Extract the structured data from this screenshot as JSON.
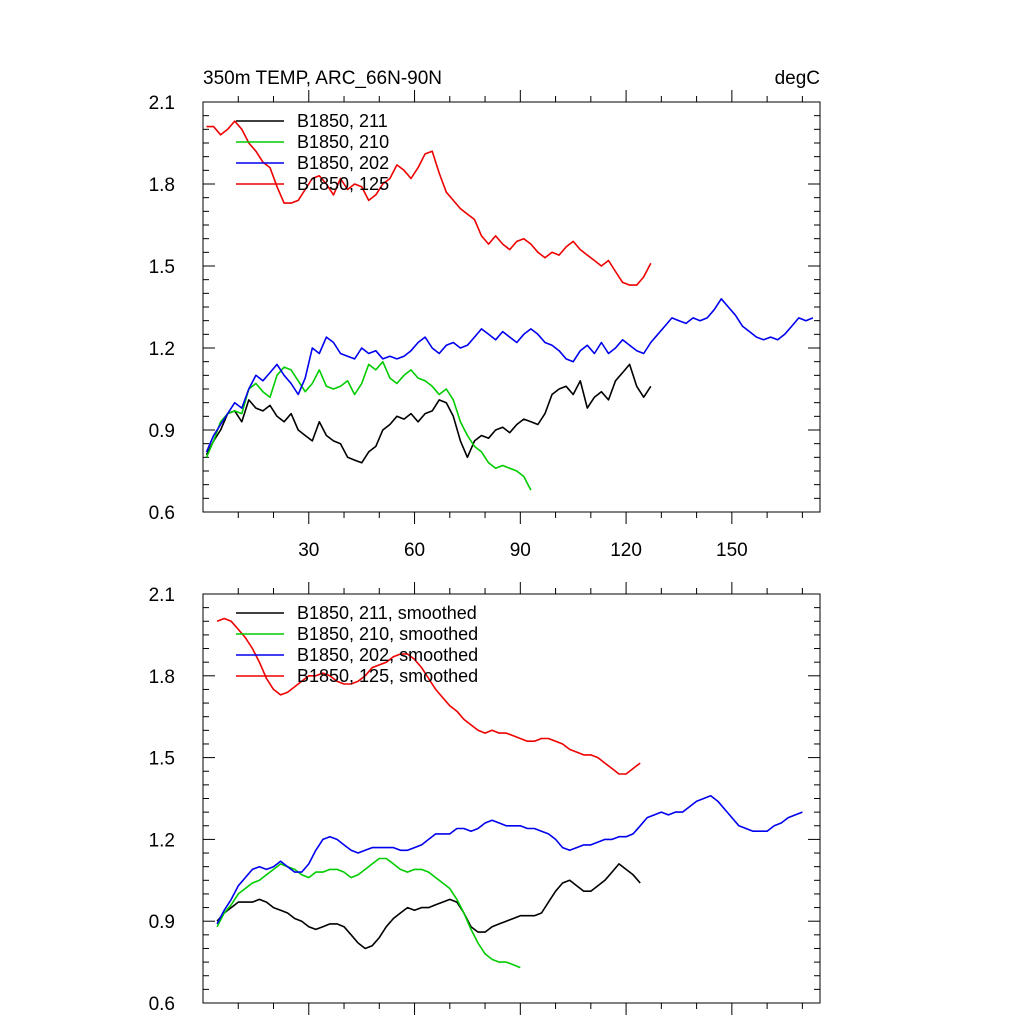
{
  "chart_data": [
    {
      "type": "line",
      "title": "350m TEMP, ARC_66N-90N",
      "units": "degC",
      "xlabel": "",
      "ylabel": "",
      "xlim": [
        0,
        175
      ],
      "ylim": [
        0.6,
        2.1
      ],
      "xticks": [
        30,
        60,
        90,
        120,
        150
      ],
      "xtick_labels": [
        "30",
        "60",
        "90",
        "120",
        "150"
      ],
      "yticks": [
        0.6,
        0.9,
        1.2,
        1.5,
        1.8,
        2.1
      ],
      "ytick_labels": [
        "0.6",
        "0.9",
        "1.2",
        "1.5",
        "1.8",
        "2.1"
      ],
      "grid": false,
      "legend_position": "top-left",
      "series": [
        {
          "name": "B1850, 211",
          "color": "#000000",
          "x": [
            1,
            3,
            5,
            7,
            9,
            11,
            13,
            15,
            17,
            19,
            21,
            23,
            25,
            27,
            29,
            31,
            33,
            35,
            37,
            39,
            41,
            43,
            45,
            47,
            49,
            51,
            53,
            55,
            57,
            59,
            61,
            63,
            65,
            67,
            69,
            71,
            73,
            75,
            77,
            79,
            81,
            83,
            85,
            87,
            89,
            91,
            93,
            95,
            97,
            99,
            101,
            103,
            105,
            107,
            109,
            111,
            113,
            115,
            117,
            119,
            121,
            123,
            125,
            127
          ],
          "y": [
            0.81,
            0.86,
            0.9,
            0.96,
            0.97,
            0.93,
            1.01,
            0.98,
            0.97,
            0.99,
            0.95,
            0.93,
            0.96,
            0.9,
            0.88,
            0.86,
            0.93,
            0.88,
            0.86,
            0.85,
            0.8,
            0.79,
            0.78,
            0.82,
            0.84,
            0.9,
            0.92,
            0.95,
            0.94,
            0.96,
            0.93,
            0.96,
            0.97,
            1.01,
            1.0,
            0.95,
            0.86,
            0.8,
            0.86,
            0.88,
            0.87,
            0.9,
            0.91,
            0.89,
            0.92,
            0.94,
            0.93,
            0.92,
            0.96,
            1.03,
            1.05,
            1.06,
            1.03,
            1.08,
            0.98,
            1.02,
            1.04,
            1.01,
            1.08,
            1.11,
            1.14,
            1.06,
            1.02,
            1.06
          ]
        },
        {
          "name": "B1850, 210",
          "color": "#00cc00",
          "x": [
            1,
            3,
            5,
            7,
            9,
            11,
            13,
            15,
            17,
            19,
            21,
            23,
            25,
            27,
            29,
            31,
            33,
            35,
            37,
            39,
            41,
            43,
            45,
            47,
            49,
            51,
            53,
            55,
            57,
            59,
            61,
            63,
            65,
            67,
            69,
            71,
            73,
            75,
            77,
            79,
            81,
            83,
            85,
            87,
            89,
            91,
            93
          ],
          "y": [
            0.8,
            0.86,
            0.93,
            0.96,
            0.97,
            0.96,
            1.05,
            1.07,
            1.04,
            1.02,
            1.1,
            1.13,
            1.12,
            1.08,
            1.04,
            1.07,
            1.12,
            1.06,
            1.05,
            1.06,
            1.08,
            1.03,
            1.07,
            1.14,
            1.12,
            1.15,
            1.09,
            1.07,
            1.1,
            1.12,
            1.09,
            1.08,
            1.06,
            1.03,
            1.05,
            1.01,
            0.93,
            0.88,
            0.84,
            0.82,
            0.78,
            0.76,
            0.77,
            0.76,
            0.75,
            0.73,
            0.68
          ]
        },
        {
          "name": "B1850, 202",
          "color": "#0000ee",
          "x": [
            1,
            3,
            5,
            7,
            9,
            11,
            13,
            15,
            17,
            19,
            21,
            23,
            25,
            27,
            29,
            31,
            33,
            35,
            37,
            39,
            41,
            43,
            45,
            47,
            49,
            51,
            53,
            55,
            57,
            59,
            61,
            63,
            65,
            67,
            69,
            71,
            73,
            75,
            77,
            79,
            81,
            83,
            85,
            87,
            89,
            91,
            93,
            95,
            97,
            99,
            101,
            103,
            105,
            107,
            109,
            111,
            113,
            115,
            117,
            119,
            121,
            123,
            125,
            127,
            129,
            131,
            133,
            135,
            137,
            139,
            141,
            143,
            145,
            147,
            149,
            151,
            153,
            155,
            157,
            159,
            161,
            163,
            165,
            167,
            169,
            171,
            173
          ],
          "y": [
            0.82,
            0.88,
            0.92,
            0.96,
            1.0,
            0.98,
            1.05,
            1.1,
            1.08,
            1.11,
            1.14,
            1.1,
            1.07,
            1.03,
            1.09,
            1.2,
            1.18,
            1.24,
            1.22,
            1.18,
            1.17,
            1.16,
            1.2,
            1.18,
            1.19,
            1.16,
            1.17,
            1.16,
            1.17,
            1.19,
            1.22,
            1.24,
            1.2,
            1.18,
            1.21,
            1.22,
            1.2,
            1.21,
            1.24,
            1.27,
            1.25,
            1.23,
            1.26,
            1.24,
            1.22,
            1.25,
            1.27,
            1.25,
            1.22,
            1.21,
            1.19,
            1.16,
            1.15,
            1.19,
            1.21,
            1.18,
            1.22,
            1.18,
            1.2,
            1.23,
            1.21,
            1.19,
            1.18,
            1.22,
            1.25,
            1.28,
            1.31,
            1.3,
            1.29,
            1.31,
            1.3,
            1.31,
            1.34,
            1.38,
            1.35,
            1.32,
            1.28,
            1.26,
            1.24,
            1.23,
            1.24,
            1.23,
            1.25,
            1.28,
            1.31,
            1.3,
            1.31
          ]
        },
        {
          "name": "B1850, 125",
          "color": "#ee0000",
          "x": [
            1,
            3,
            5,
            7,
            9,
            11,
            13,
            15,
            17,
            19,
            21,
            23,
            25,
            27,
            29,
            31,
            33,
            35,
            37,
            39,
            41,
            43,
            45,
            47,
            49,
            51,
            53,
            55,
            57,
            59,
            61,
            63,
            65,
            67,
            69,
            71,
            73,
            75,
            77,
            79,
            81,
            83,
            85,
            87,
            89,
            91,
            93,
            95,
            97,
            99,
            101,
            103,
            105,
            107,
            109,
            111,
            113,
            115,
            117,
            119,
            121,
            123,
            125,
            127
          ],
          "y": [
            2.01,
            2.01,
            1.98,
            2.0,
            2.03,
            2.0,
            1.95,
            1.92,
            1.88,
            1.86,
            1.79,
            1.73,
            1.73,
            1.74,
            1.78,
            1.82,
            1.83,
            1.8,
            1.76,
            1.82,
            1.78,
            1.8,
            1.79,
            1.74,
            1.76,
            1.8,
            1.82,
            1.87,
            1.85,
            1.82,
            1.86,
            1.91,
            1.92,
            1.84,
            1.77,
            1.74,
            1.71,
            1.69,
            1.67,
            1.61,
            1.58,
            1.61,
            1.58,
            1.56,
            1.59,
            1.6,
            1.58,
            1.55,
            1.53,
            1.55,
            1.54,
            1.57,
            1.59,
            1.56,
            1.54,
            1.52,
            1.5,
            1.52,
            1.48,
            1.44,
            1.43,
            1.43,
            1.46,
            1.51
          ]
        }
      ]
    },
    {
      "type": "line",
      "title": "",
      "xlabel": "",
      "ylabel": "",
      "xlim": [
        0,
        175
      ],
      "ylim": [
        0.6,
        2.1
      ],
      "xticks": [
        30,
        60,
        90,
        120,
        150
      ],
      "xtick_labels": [],
      "yticks": [
        0.6,
        0.9,
        1.2,
        1.5,
        1.8,
        2.1
      ],
      "ytick_labels": [
        "0.6",
        "0.9",
        "1.2",
        "1.5",
        "1.8",
        "2.1"
      ],
      "grid": false,
      "legend_position": "top-left",
      "series": [
        {
          "name": "B1850, 211, smoothed",
          "color": "#000000",
          "x": [
            4,
            6,
            8,
            10,
            12,
            14,
            16,
            18,
            20,
            22,
            24,
            26,
            28,
            30,
            32,
            34,
            36,
            38,
            40,
            42,
            44,
            46,
            48,
            50,
            52,
            54,
            56,
            58,
            60,
            62,
            64,
            66,
            68,
            70,
            72,
            74,
            76,
            78,
            80,
            82,
            84,
            86,
            88,
            90,
            92,
            94,
            96,
            98,
            100,
            102,
            104,
            106,
            108,
            110,
            112,
            114,
            116,
            118,
            120,
            122,
            124
          ],
          "y": [
            0.9,
            0.93,
            0.95,
            0.97,
            0.97,
            0.97,
            0.98,
            0.97,
            0.95,
            0.94,
            0.93,
            0.91,
            0.9,
            0.88,
            0.87,
            0.88,
            0.89,
            0.89,
            0.88,
            0.85,
            0.82,
            0.8,
            0.81,
            0.84,
            0.88,
            0.91,
            0.93,
            0.95,
            0.94,
            0.95,
            0.95,
            0.96,
            0.97,
            0.98,
            0.97,
            0.93,
            0.88,
            0.86,
            0.86,
            0.88,
            0.89,
            0.9,
            0.91,
            0.92,
            0.92,
            0.92,
            0.93,
            0.97,
            1.01,
            1.04,
            1.05,
            1.03,
            1.01,
            1.01,
            1.03,
            1.05,
            1.08,
            1.11,
            1.09,
            1.07,
            1.04
          ]
        },
        {
          "name": "B1850, 210, smoothed",
          "color": "#00cc00",
          "x": [
            4,
            6,
            8,
            10,
            12,
            14,
            16,
            18,
            20,
            22,
            24,
            26,
            28,
            30,
            32,
            34,
            36,
            38,
            40,
            42,
            44,
            46,
            48,
            50,
            52,
            54,
            56,
            58,
            60,
            62,
            64,
            66,
            68,
            70,
            72,
            74,
            76,
            78,
            80,
            82,
            84,
            86,
            88,
            90
          ],
          "y": [
            0.88,
            0.93,
            0.96,
            1.0,
            1.02,
            1.04,
            1.05,
            1.07,
            1.09,
            1.11,
            1.1,
            1.09,
            1.07,
            1.06,
            1.08,
            1.08,
            1.09,
            1.09,
            1.08,
            1.06,
            1.07,
            1.09,
            1.11,
            1.13,
            1.13,
            1.11,
            1.09,
            1.08,
            1.09,
            1.09,
            1.08,
            1.06,
            1.04,
            1.02,
            0.98,
            0.93,
            0.87,
            0.82,
            0.78,
            0.76,
            0.75,
            0.75,
            0.74,
            0.73
          ]
        },
        {
          "name": "B1850, 202, smoothed",
          "color": "#0000ee",
          "x": [
            4,
            6,
            8,
            10,
            12,
            14,
            16,
            18,
            20,
            22,
            24,
            26,
            28,
            30,
            32,
            34,
            36,
            38,
            40,
            42,
            44,
            46,
            48,
            50,
            52,
            54,
            56,
            58,
            60,
            62,
            64,
            66,
            68,
            70,
            72,
            74,
            76,
            78,
            80,
            82,
            84,
            86,
            88,
            90,
            92,
            94,
            96,
            98,
            100,
            102,
            104,
            106,
            108,
            110,
            112,
            114,
            116,
            118,
            120,
            122,
            124,
            126,
            128,
            130,
            132,
            134,
            136,
            138,
            140,
            142,
            144,
            146,
            148,
            150,
            152,
            154,
            156,
            158,
            160,
            162,
            164,
            166,
            168,
            170
          ],
          "y": [
            0.89,
            0.94,
            0.98,
            1.03,
            1.06,
            1.09,
            1.1,
            1.09,
            1.1,
            1.12,
            1.1,
            1.08,
            1.08,
            1.11,
            1.16,
            1.2,
            1.21,
            1.2,
            1.18,
            1.16,
            1.15,
            1.16,
            1.17,
            1.17,
            1.17,
            1.17,
            1.16,
            1.16,
            1.17,
            1.18,
            1.2,
            1.22,
            1.22,
            1.22,
            1.24,
            1.24,
            1.23,
            1.24,
            1.26,
            1.27,
            1.26,
            1.25,
            1.25,
            1.25,
            1.24,
            1.24,
            1.23,
            1.22,
            1.2,
            1.17,
            1.16,
            1.17,
            1.18,
            1.18,
            1.19,
            1.2,
            1.2,
            1.21,
            1.21,
            1.22,
            1.25,
            1.28,
            1.29,
            1.3,
            1.29,
            1.3,
            1.3,
            1.32,
            1.34,
            1.35,
            1.36,
            1.34,
            1.31,
            1.28,
            1.25,
            1.24,
            1.23,
            1.23,
            1.23,
            1.25,
            1.26,
            1.28,
            1.29,
            1.3
          ]
        },
        {
          "name": "B1850, 125, smoothed",
          "color": "#ee0000",
          "x": [
            4,
            6,
            8,
            10,
            12,
            14,
            16,
            18,
            20,
            22,
            24,
            26,
            28,
            30,
            32,
            34,
            36,
            38,
            40,
            42,
            44,
            46,
            48,
            50,
            52,
            54,
            56,
            58,
            60,
            62,
            64,
            66,
            68,
            70,
            72,
            74,
            76,
            78,
            80,
            82,
            84,
            86,
            88,
            90,
            92,
            94,
            96,
            98,
            100,
            102,
            104,
            106,
            108,
            110,
            112,
            114,
            116,
            118,
            120,
            122,
            124
          ],
          "y": [
            2.0,
            2.01,
            2.0,
            1.97,
            1.94,
            1.9,
            1.85,
            1.79,
            1.75,
            1.73,
            1.74,
            1.76,
            1.78,
            1.8,
            1.8,
            1.81,
            1.8,
            1.78,
            1.77,
            1.77,
            1.78,
            1.8,
            1.83,
            1.84,
            1.85,
            1.87,
            1.88,
            1.88,
            1.86,
            1.83,
            1.79,
            1.75,
            1.72,
            1.69,
            1.67,
            1.64,
            1.62,
            1.6,
            1.59,
            1.6,
            1.59,
            1.59,
            1.58,
            1.57,
            1.56,
            1.56,
            1.57,
            1.57,
            1.56,
            1.55,
            1.53,
            1.52,
            1.51,
            1.51,
            1.5,
            1.48,
            1.46,
            1.44,
            1.44,
            1.46,
            1.48
          ]
        }
      ]
    }
  ]
}
